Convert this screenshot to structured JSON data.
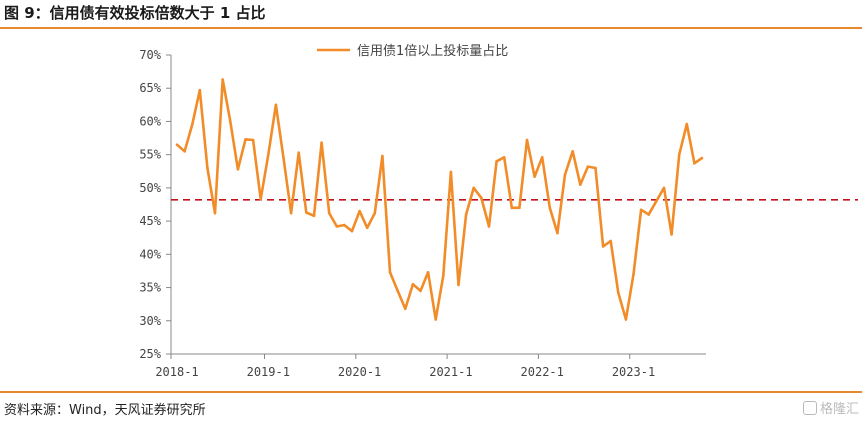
{
  "header": {
    "title": "图 9：信用债有效投标倍数大于 1 占比"
  },
  "footer": {
    "source": "资料来源：Wind，天风证券研究所",
    "watermark": "格隆汇"
  },
  "colors": {
    "line": "#f28c28",
    "reference": "#c0141c",
    "rule": "#e8892f"
  },
  "chart_data": {
    "type": "line",
    "title": "",
    "xlabel": "",
    "ylabel": "",
    "ylim": [
      0.25,
      0.7
    ],
    "yticks": [
      0.25,
      0.3,
      0.35,
      0.4,
      0.45,
      0.5,
      0.55,
      0.6,
      0.65,
      0.7
    ],
    "ytick_labels": [
      "25%",
      "30%",
      "35%",
      "40%",
      "45%",
      "50%",
      "55%",
      "60%",
      "65%",
      "70%"
    ],
    "x_tick_labels": [
      "2018-1",
      "2019-1",
      "2020-1",
      "2021-1",
      "2022-1",
      "2023-1"
    ],
    "x_start": "2018-01",
    "legend": {
      "position": "top-center"
    },
    "reference_line": {
      "y": 0.482,
      "style": "dashed"
    },
    "series": [
      {
        "name": "信用债1倍以上投标量占比",
        "values": [
          0.565,
          0.555,
          0.595,
          0.647,
          0.53,
          0.462,
          0.663,
          0.6,
          0.528,
          0.573,
          0.572,
          0.483,
          0.55,
          0.625,
          0.545,
          0.462,
          0.553,
          0.463,
          0.458,
          0.568,
          0.462,
          0.442,
          0.444,
          0.435,
          0.465,
          0.44,
          0.462,
          0.548,
          0.373,
          0.345,
          0.318,
          0.355,
          0.345,
          0.373,
          0.302,
          0.368,
          0.524,
          0.354,
          0.46,
          0.5,
          0.485,
          0.442,
          0.54,
          0.546,
          0.47,
          0.47,
          0.572,
          0.517,
          0.546,
          0.47,
          0.432,
          0.52,
          0.555,
          0.505,
          0.532,
          0.53,
          0.412,
          0.42,
          0.342,
          0.302,
          0.37,
          0.467,
          0.46,
          0.48,
          0.5,
          0.43,
          0.55,
          0.596,
          0.537,
          0.545
        ]
      }
    ]
  }
}
